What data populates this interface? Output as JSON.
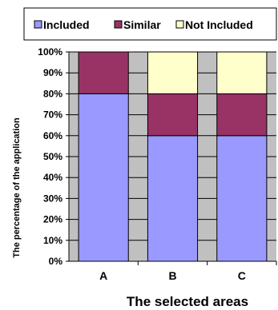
{
  "chart_data": {
    "type": "bar",
    "stacked": true,
    "percent": true,
    "categories": [
      "A",
      "B",
      "C"
    ],
    "series": [
      {
        "name": "Included",
        "values": [
          80,
          60,
          60
        ],
        "color": "#9999ff"
      },
      {
        "name": "Similar",
        "values": [
          20,
          20,
          20
        ],
        "color": "#993366"
      },
      {
        "name": "Not Included",
        "values": [
          0,
          20,
          20
        ],
        "color": "#ffffcc"
      }
    ],
    "xlabel": "The selected areas",
    "ylabel": "The percentage of the application",
    "ylim": [
      0,
      100
    ],
    "ytick_labels": [
      "0%",
      "10%",
      "20%",
      "30%",
      "40%",
      "50%",
      "60%",
      "70%",
      "80%",
      "90%",
      "100%"
    ],
    "grid": true,
    "plot_background": "#c0c0c0",
    "legend_position": "top"
  }
}
